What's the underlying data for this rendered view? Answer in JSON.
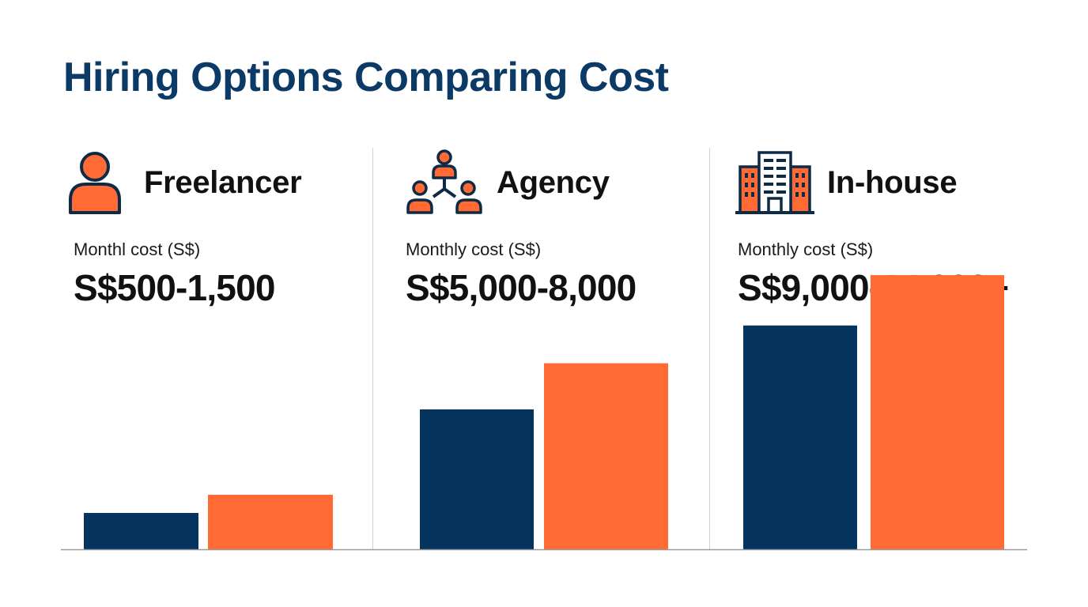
{
  "title": "Hiring Options Comparing Cost",
  "colors": {
    "title": "#0b3a66",
    "navy": "#05355f",
    "orange": "#ff6a35"
  },
  "options": [
    {
      "name": "Freelancer",
      "icon": "person-icon",
      "cost_label": "Monthl cost (S$)",
      "cost_range": "S$500-1,500"
    },
    {
      "name": "Agency",
      "icon": "team-network-icon",
      "cost_label": "Monthly cost (S$)",
      "cost_range": "S$5,000-8,000"
    },
    {
      "name": "In-house",
      "icon": "office-building-icon",
      "cost_label": "Monthly cost (S$)",
      "cost_range": "S$9,000-14,000+"
    }
  ],
  "chart_data": {
    "type": "bar",
    "categories": [
      "Freelancer",
      "Agency",
      "In-house"
    ],
    "series": [
      {
        "values": [
          1300,
          5000,
          8000
        ]
      },
      {
        "values": [
          1950,
          6650,
          9800
        ]
      }
    ],
    "ylim": [
      0,
      10000
    ],
    "grid": false,
    "legend": "none"
  }
}
